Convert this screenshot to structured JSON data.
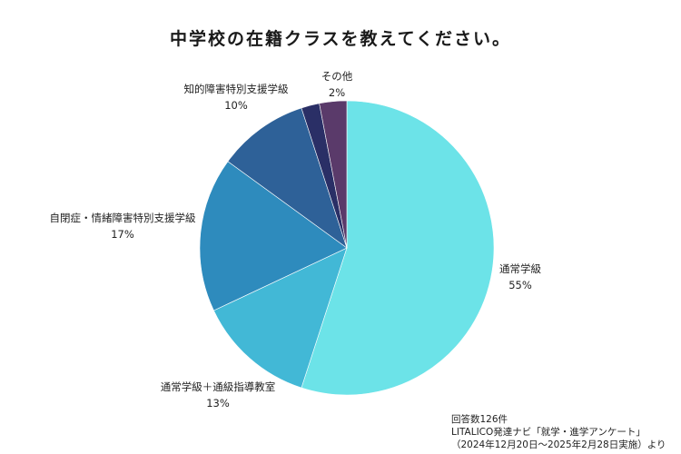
{
  "chart_data": {
    "type": "pie",
    "title": "中学校の在籍クラスを教えてください。",
    "categories": [
      "通常学級",
      "通常学級＋通級指導教室",
      "自閉症・情緒障害特別支援学級",
      "知的障害特別支援学級",
      "その他"
    ],
    "values": [
      55,
      13,
      17,
      10,
      2
    ],
    "value_labels": [
      "55%",
      "13%",
      "17%",
      "10%",
      "2%"
    ],
    "colors": [
      "#6ce3e8",
      "#42b8d6",
      "#2e8bbd",
      "#2e6198",
      "#2a2f66"
    ],
    "extra_wedge": {
      "value": 3,
      "color": "#5a3a6a"
    },
    "legend": "none",
    "grid": false
  },
  "notes": {
    "respondents": "回答数126件",
    "source": "LITALICO発達ナビ「就学・進学アンケート」",
    "period": "（2024年12月20日～2025年2月28日実施）より"
  }
}
